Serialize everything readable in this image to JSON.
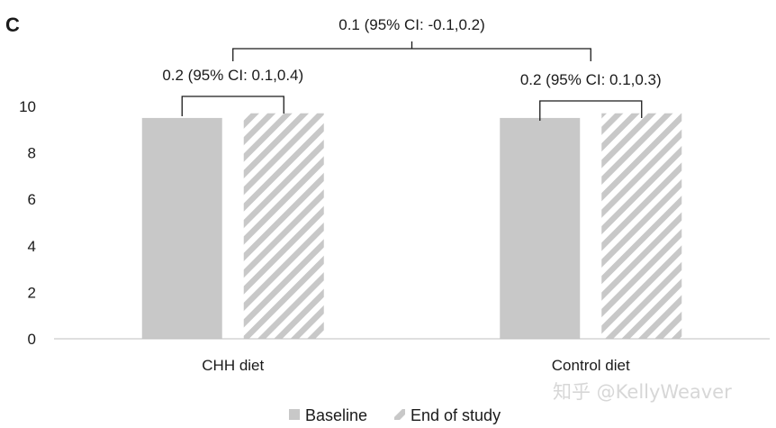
{
  "panel_label": "C",
  "watermark": "知乎 @KellyWeaver",
  "chart_data": {
    "type": "bar",
    "categories": [
      "CHH diet",
      "Control diet"
    ],
    "series": [
      {
        "name": "Baseline",
        "values": [
          9.5,
          9.5
        ],
        "color": "#c8c8c8",
        "pattern": "solid"
      },
      {
        "name": "End of study",
        "values": [
          9.7,
          9.7
        ],
        "color": "#c8c8c8",
        "pattern": "diagonal-hatch"
      }
    ],
    "ylim": [
      0,
      10
    ],
    "yticks": [
      0,
      2,
      4,
      6,
      8,
      10
    ],
    "legend_position": "bottom",
    "annotations": {
      "within": [
        "0.2 (95% CI: 0.1,0.4)",
        "0.2 (95% CI: 0.1,0.3)"
      ],
      "between": "0.1 (95% CI: -0.1,0.2)"
    }
  }
}
